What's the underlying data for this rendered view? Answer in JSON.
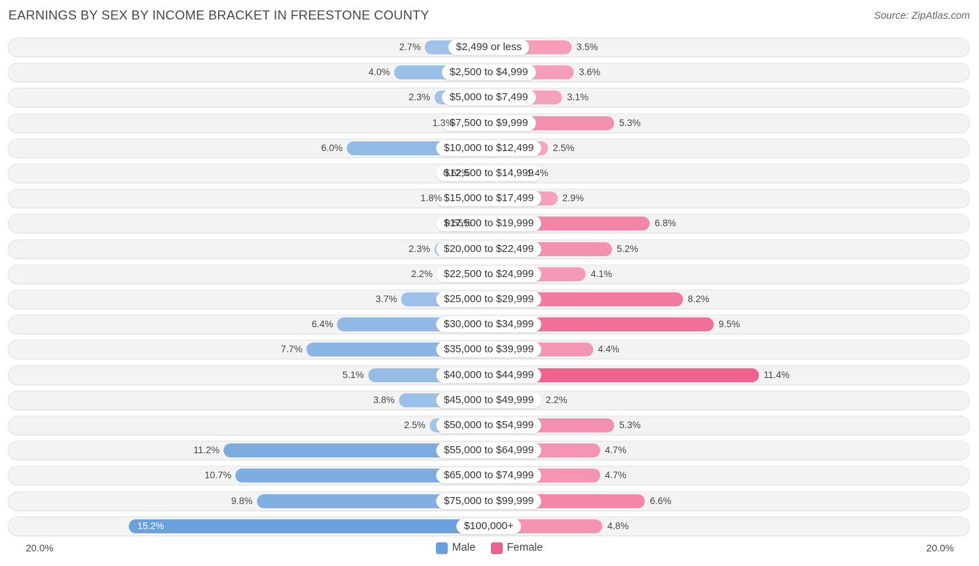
{
  "title": "EARNINGS BY SEX BY INCOME BRACKET IN FREESTONE COUNTY",
  "source": "Source: ZipAtlas.com",
  "colors": {
    "male": "#6aa0dc",
    "female": "#f0628e",
    "row_bg": "#f3f3f3"
  },
  "chart_data": {
    "type": "bar",
    "orientation": "horizontal-diverging",
    "title": "EARNINGS BY SEX BY INCOME BRACKET IN FREESTONE COUNTY",
    "xlim": [
      -20,
      20
    ],
    "axis_labels": {
      "left": "20.0%",
      "right": "20.0%"
    },
    "legend": {
      "position": "bottom-center",
      "entries": [
        "Male",
        "Female"
      ]
    },
    "categories": [
      "$2,499 or less",
      "$2,500 to $4,999",
      "$5,000 to $7,499",
      "$7,500 to $9,999",
      "$10,000 to $12,499",
      "$12,500 to $14,999",
      "$15,000 to $17,499",
      "$17,500 to $19,999",
      "$20,000 to $22,499",
      "$22,500 to $24,999",
      "$25,000 to $29,999",
      "$30,000 to $34,999",
      "$35,000 to $39,999",
      "$40,000 to $44,999",
      "$45,000 to $49,999",
      "$50,000 to $54,999",
      "$55,000 to $64,999",
      "$65,000 to $74,999",
      "$75,000 to $99,999",
      "$100,000+"
    ],
    "series": [
      {
        "name": "Male",
        "values": [
          2.7,
          4.0,
          2.3,
          1.3,
          6.0,
          0.62,
          1.8,
          0.55,
          2.3,
          2.2,
          3.7,
          6.4,
          7.7,
          5.1,
          3.8,
          2.5,
          11.2,
          10.7,
          9.8,
          15.2
        ],
        "labels": [
          "2.7%",
          "4.0%",
          "2.3%",
          "1.3%",
          "6.0%",
          "0.62%",
          "1.8%",
          "0.55%",
          "2.3%",
          "2.2%",
          "3.7%",
          "6.4%",
          "7.7%",
          "5.1%",
          "3.8%",
          "2.5%",
          "11.2%",
          "10.7%",
          "9.8%",
          "15.2%"
        ]
      },
      {
        "name": "Female",
        "values": [
          3.5,
          3.6,
          3.1,
          5.3,
          2.5,
          1.4,
          2.9,
          6.8,
          5.2,
          4.1,
          8.2,
          9.5,
          4.4,
          11.4,
          2.2,
          5.3,
          4.7,
          4.7,
          6.6,
          4.8
        ],
        "labels": [
          "3.5%",
          "3.6%",
          "3.1%",
          "5.3%",
          "2.5%",
          "1.4%",
          "2.9%",
          "6.8%",
          "5.2%",
          "4.1%",
          "8.2%",
          "9.5%",
          "4.4%",
          "11.4%",
          "2.2%",
          "5.3%",
          "4.7%",
          "4.7%",
          "6.6%",
          "4.8%"
        ]
      }
    ]
  }
}
